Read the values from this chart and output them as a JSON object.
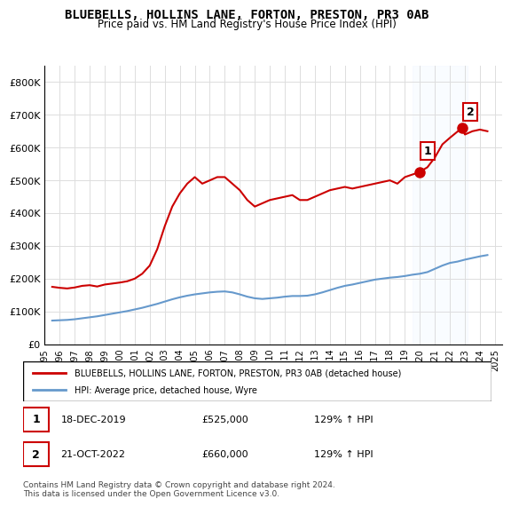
{
  "title": "BLUEBELLS, HOLLINS LANE, FORTON, PRESTON, PR3 0AB",
  "subtitle": "Price paid vs. HM Land Registry's House Price Index (HPI)",
  "legend_label_red": "BLUEBELLS, HOLLINS LANE, FORTON, PRESTON, PR3 0AB (detached house)",
  "legend_label_blue": "HPI: Average price, detached house, Wyre",
  "annotation1_label": "1",
  "annotation1_date": "18-DEC-2019",
  "annotation1_price": "£525,000",
  "annotation1_hpi": "129% ↑ HPI",
  "annotation2_label": "2",
  "annotation2_date": "21-OCT-2022",
  "annotation2_price": "£660,000",
  "annotation2_hpi": "129% ↑ HPI",
  "footer": "Contains HM Land Registry data © Crown copyright and database right 2024.\nThis data is licensed under the Open Government Licence v3.0.",
  "red_color": "#cc0000",
  "blue_color": "#6699cc",
  "annotation_box_color": "#cc0000",
  "shaded_region_color": "#ddeeff",
  "ylim": [
    0,
    850000
  ],
  "xlim_start": 1995.0,
  "xlim_end": 2025.5,
  "red_x": [
    1995.5,
    1996.0,
    1996.5,
    1997.0,
    1997.5,
    1998.0,
    1998.5,
    1999.0,
    1999.5,
    2000.0,
    2000.5,
    2001.0,
    2001.5,
    2002.0,
    2002.5,
    2003.0,
    2003.5,
    2004.0,
    2004.5,
    2005.0,
    2005.5,
    2006.0,
    2006.5,
    2007.0,
    2007.5,
    2008.0,
    2008.5,
    2009.0,
    2009.5,
    2010.0,
    2010.5,
    2011.0,
    2011.5,
    2012.0,
    2012.5,
    2013.0,
    2013.5,
    2014.0,
    2014.5,
    2015.0,
    2015.5,
    2016.0,
    2016.5,
    2017.0,
    2017.5,
    2018.0,
    2018.5,
    2019.0,
    2019.96,
    2020.5,
    2021.0,
    2021.5,
    2022.0,
    2022.8,
    2023.0,
    2023.5,
    2024.0,
    2024.5
  ],
  "red_y": [
    175000,
    172000,
    170000,
    173000,
    178000,
    180000,
    176000,
    182000,
    185000,
    188000,
    192000,
    200000,
    215000,
    240000,
    290000,
    360000,
    420000,
    460000,
    490000,
    510000,
    490000,
    500000,
    510000,
    510000,
    490000,
    470000,
    440000,
    420000,
    430000,
    440000,
    445000,
    450000,
    455000,
    440000,
    440000,
    450000,
    460000,
    470000,
    475000,
    480000,
    475000,
    480000,
    485000,
    490000,
    495000,
    500000,
    490000,
    510000,
    525000,
    540000,
    570000,
    610000,
    630000,
    660000,
    640000,
    650000,
    655000,
    650000
  ],
  "blue_x": [
    1995.5,
    1996.0,
    1996.5,
    1997.0,
    1997.5,
    1998.0,
    1998.5,
    1999.0,
    1999.5,
    2000.0,
    2000.5,
    2001.0,
    2001.5,
    2002.0,
    2002.5,
    2003.0,
    2003.5,
    2004.0,
    2004.5,
    2005.0,
    2005.5,
    2006.0,
    2006.5,
    2007.0,
    2007.5,
    2008.0,
    2008.5,
    2009.0,
    2009.5,
    2010.0,
    2010.5,
    2011.0,
    2011.5,
    2012.0,
    2012.5,
    2013.0,
    2013.5,
    2014.0,
    2014.5,
    2015.0,
    2015.5,
    2016.0,
    2016.5,
    2017.0,
    2017.5,
    2018.0,
    2018.5,
    2019.0,
    2019.5,
    2020.0,
    2020.5,
    2021.0,
    2021.5,
    2022.0,
    2022.5,
    2023.0,
    2023.5,
    2024.0,
    2024.5
  ],
  "blue_y": [
    72000,
    73000,
    74000,
    76000,
    79000,
    82000,
    85000,
    89000,
    93000,
    97000,
    101000,
    106000,
    111000,
    117000,
    123000,
    130000,
    137000,
    143000,
    148000,
    152000,
    155000,
    158000,
    160000,
    161000,
    158000,
    152000,
    145000,
    140000,
    138000,
    140000,
    142000,
    145000,
    147000,
    147000,
    148000,
    152000,
    158000,
    165000,
    172000,
    178000,
    182000,
    187000,
    192000,
    197000,
    200000,
    203000,
    205000,
    208000,
    212000,
    215000,
    220000,
    230000,
    240000,
    248000,
    252000,
    258000,
    263000,
    268000,
    272000
  ],
  "point1_x": 2019.96,
  "point1_y": 525000,
  "point2_x": 2022.8,
  "point2_y": 660000,
  "shaded_x1": 2019.5,
  "shaded_x2": 2023.2,
  "yticks": [
    0,
    100000,
    200000,
    300000,
    400000,
    500000,
    600000,
    700000,
    800000
  ],
  "ytick_labels": [
    "£0",
    "£100K",
    "£200K",
    "£300K",
    "£400K",
    "£500K",
    "£600K",
    "£700K",
    "£800K"
  ],
  "xticks": [
    1995,
    1996,
    1997,
    1998,
    1999,
    2000,
    2001,
    2002,
    2003,
    2004,
    2005,
    2006,
    2007,
    2008,
    2009,
    2010,
    2011,
    2012,
    2013,
    2014,
    2015,
    2016,
    2017,
    2018,
    2019,
    2020,
    2021,
    2022,
    2023,
    2024,
    2025
  ]
}
